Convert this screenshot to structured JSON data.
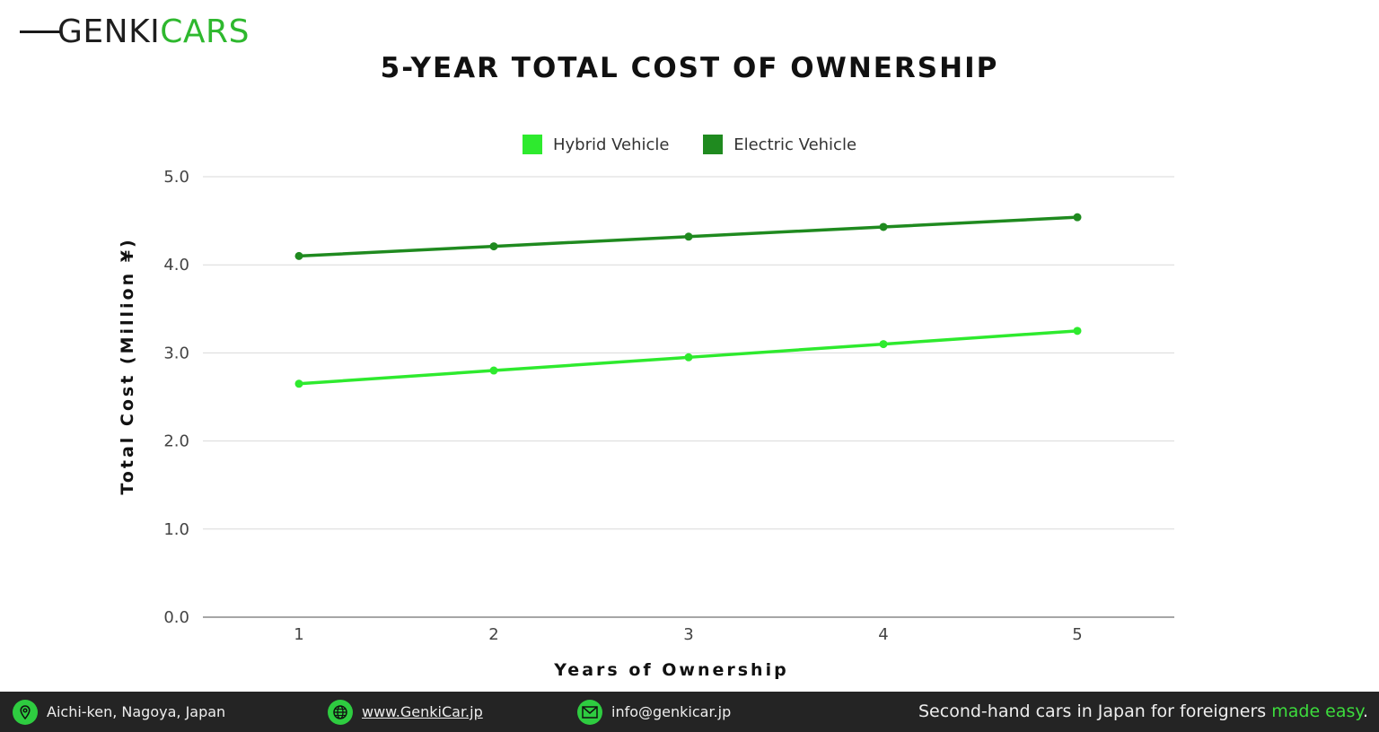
{
  "brand": {
    "name_part1": "GENKI",
    "name_part2": "CARS"
  },
  "colors": {
    "hybrid": "#2eea2e",
    "electric": "#1f8a1f",
    "accent": "#2eb82e",
    "footer_bg": "#242424"
  },
  "chart_data": {
    "type": "line",
    "title": "5-YEAR TOTAL COST OF OWNERSHIP",
    "xlabel": "Years of Ownership",
    "ylabel": "Total Cost (Million ¥)",
    "x": [
      1,
      2,
      3,
      4,
      5
    ],
    "x_tick_labels": [
      "1",
      "2",
      "3",
      "4",
      "5"
    ],
    "ylim": [
      0,
      5
    ],
    "y_ticks": [
      0,
      1,
      2,
      3,
      4,
      5
    ],
    "y_tick_labels": [
      "0.0",
      "1.0",
      "2.0",
      "3.0",
      "4.0",
      "5.0"
    ],
    "grid": true,
    "legend_position": "top-center",
    "series": [
      {
        "name": "Hybrid Vehicle",
        "color": "#2eea2e",
        "values": [
          2.65,
          2.8,
          2.95,
          3.1,
          3.25
        ]
      },
      {
        "name": "Electric Vehicle",
        "color": "#1f8a1f",
        "values": [
          4.1,
          4.21,
          4.32,
          4.43,
          4.54
        ]
      }
    ]
  },
  "footer": {
    "location": "Aichi-ken, Nagoya, Japan",
    "location_icon": "location-pin-icon",
    "website": "www.GenkiCar.jp",
    "website_icon": "globe-icon",
    "email": "info@genkicar.jp",
    "email_icon": "envelope-icon",
    "tagline_main": "Second-hand cars in Japan for foreigners ",
    "tagline_accent": "made easy",
    "tagline_end": "."
  }
}
